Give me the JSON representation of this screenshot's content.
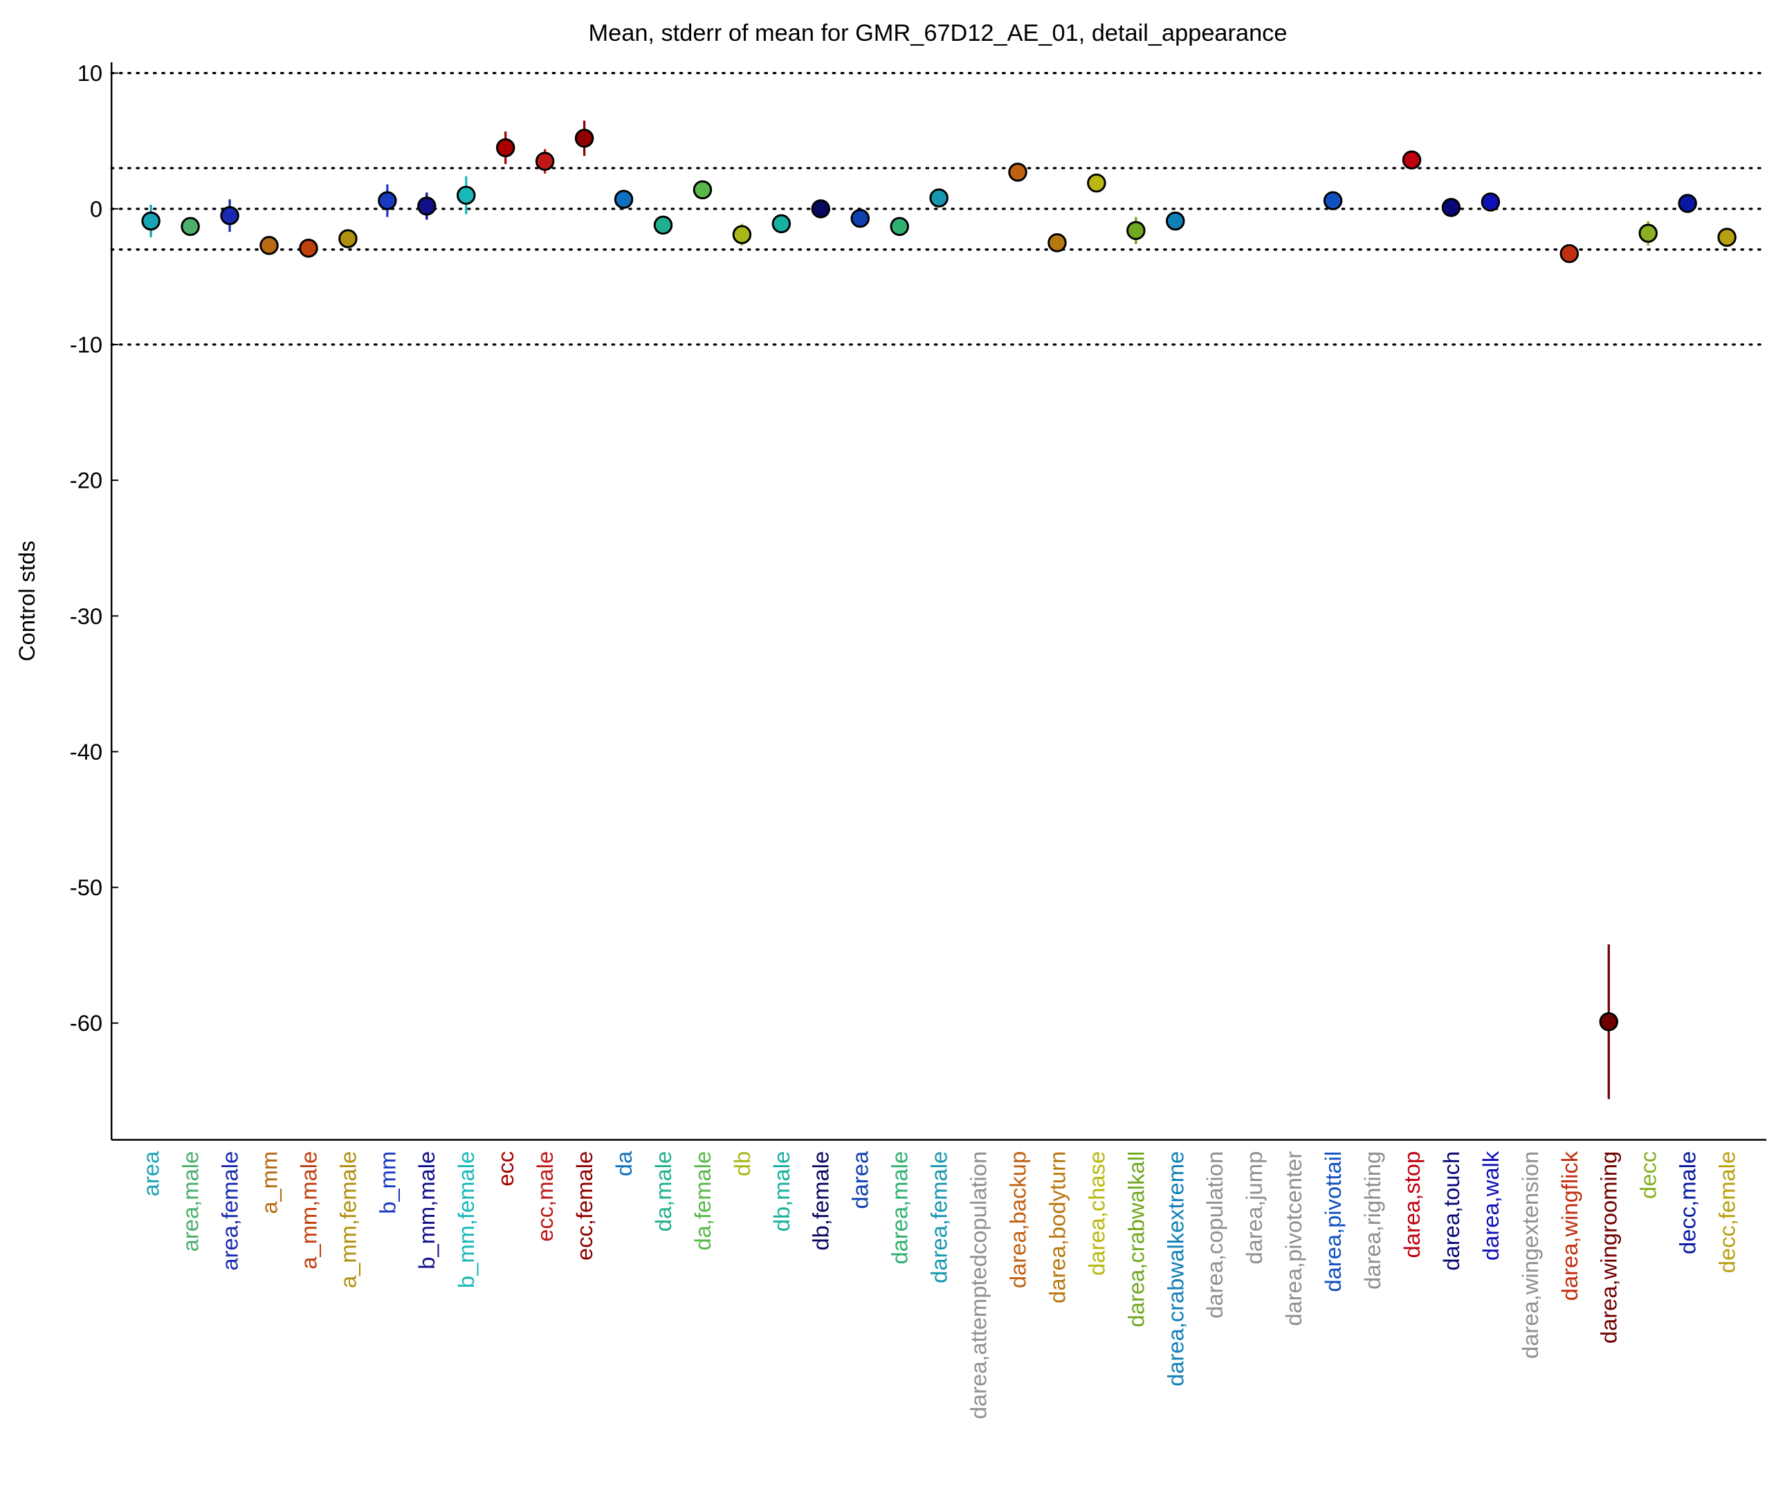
{
  "chart_data": {
    "type": "errorbar",
    "title": "Mean, stderr of mean for GMR_67D12_AE_01, detail_appearance",
    "ylabel": "Control stds",
    "categories": [
      "area",
      "area,male",
      "area,female",
      "a_mm",
      "a_mm,male",
      "a_mm,female",
      "b_mm",
      "b_mm,male",
      "b_mm,female",
      "ecc",
      "ecc,male",
      "ecc,female",
      "da",
      "da,male",
      "da,female",
      "db",
      "db,male",
      "db,female",
      "darea",
      "darea,male",
      "darea,female",
      "darea,attemptedcopulation",
      "darea,backup",
      "darea,bodyturn",
      "darea,chase",
      "darea,crabwalkall",
      "darea,crabwalkextreme",
      "darea,copulation",
      "darea,jump",
      "darea,pivotcenter",
      "darea,pivottail",
      "darea,righting",
      "darea,stop",
      "darea,touch",
      "darea,walk",
      "darea,wingextension",
      "darea,wingflick",
      "darea,wingrooming",
      "decc",
      "decc,male",
      "decc,female"
    ],
    "values": [
      -0.9,
      -1.3,
      -0.5,
      -2.7,
      -2.9,
      -2.2,
      0.6,
      0.2,
      1.0,
      4.5,
      3.5,
      5.2,
      0.7,
      -1.2,
      1.4,
      -1.9,
      -1.1,
      0.0,
      -0.7,
      -1.3,
      0.8,
      null,
      2.7,
      -2.5,
      1.9,
      -1.6,
      -0.9,
      null,
      null,
      null,
      0.6,
      null,
      3.6,
      0.1,
      0.5,
      null,
      -3.3,
      -59.9,
      -1.8,
      0.4,
      -2.1
    ],
    "errors": [
      1.2,
      0.5,
      1.2,
      0.6,
      0.3,
      0.6,
      1.2,
      1.0,
      1.4,
      1.2,
      0.9,
      1.3,
      0.5,
      0.3,
      0.3,
      0.8,
      0.3,
      0.3,
      0.3,
      0.3,
      0.3,
      null,
      0.3,
      0.3,
      0.3,
      1.0,
      0.3,
      null,
      null,
      null,
      0.3,
      null,
      0.4,
      0.3,
      0.6,
      null,
      0.3,
      5.7,
      0.9,
      0.3,
      0.3
    ],
    "colors": [
      "#1aa3b3",
      "#4caf6a",
      "#1a2ab0",
      "#b86a14",
      "#c0400e",
      "#b0900e",
      "#1a3ac0",
      "#10108a",
      "#18b8b8",
      "#a80000",
      "#c01818",
      "#900000",
      "#1070c0",
      "#20b090",
      "#58b848",
      "#a8b818",
      "#18b0a0",
      "#080860",
      "#1040b0",
      "#30b070",
      "#1898b0",
      "#909090",
      "#c06010",
      "#b87810",
      "#b8b810",
      "#70a820",
      "#1080b8",
      "#909090",
      "#909090",
      "#909090",
      "#1050c0",
      "#909090",
      "#c00010",
      "#080878",
      "#1010b8",
      "#909090",
      "#c03010",
      "#700000",
      "#88b020",
      "#0818a0",
      "#b8a010"
    ],
    "ylim": [
      -68.6,
      10.8
    ],
    "yticks": [
      -60,
      -50,
      -40,
      -30,
      -20,
      -10,
      0,
      10
    ],
    "hlines": [
      10,
      3,
      0,
      -3,
      -10
    ]
  }
}
